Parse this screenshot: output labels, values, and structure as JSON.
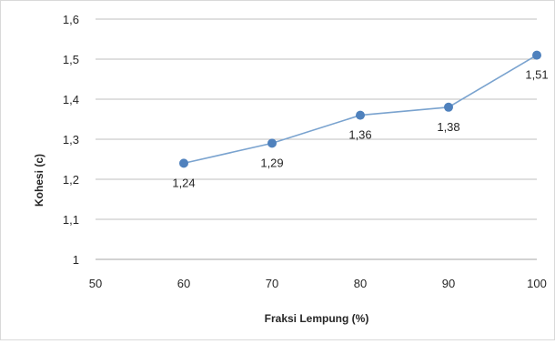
{
  "chart_data": {
    "type": "line",
    "title": "",
    "xlabel": "Fraksi Lempung (%)",
    "ylabel": "Kohesi (c)",
    "xlim": [
      50,
      100
    ],
    "ylim": [
      1,
      1.6
    ],
    "x_ticks": [
      "50",
      "60",
      "70",
      "80",
      "90",
      "100"
    ],
    "y_ticks": [
      "1",
      "1,1",
      "1,2",
      "1,3",
      "1,4",
      "1,5",
      "1,6"
    ],
    "grid": "horizontal",
    "legend": "none",
    "series": [
      {
        "x": [
          60,
          70,
          80,
          90,
          100
        ],
        "y": [
          1.24,
          1.29,
          1.36,
          1.38,
          1.51
        ],
        "labels": [
          "1,24",
          "1,29",
          "1,36",
          "1,38",
          "1,51"
        ],
        "color": "#4f81bd",
        "line_color": "#7aa3cf"
      }
    ]
  }
}
